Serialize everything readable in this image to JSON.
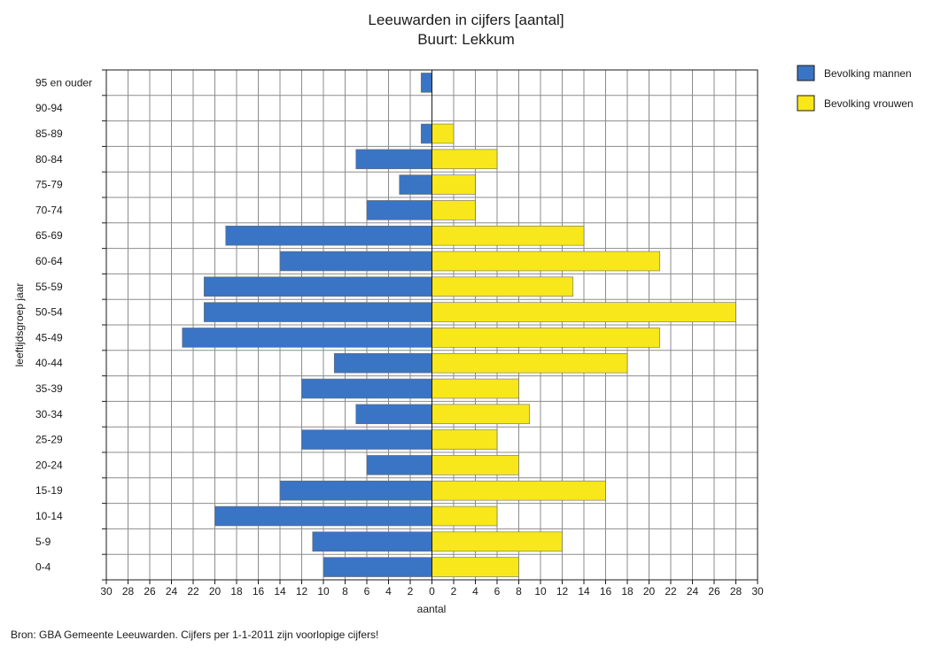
{
  "chart_data": {
    "type": "bar",
    "orientation": "horizontal",
    "layout": "population-pyramid",
    "title": "Leeuwarden in cijfers [aantal]",
    "subtitle": "Buurt: Lekkum",
    "xlabel": "aantal",
    "ylabel": "leeftijdsgroep jaar",
    "xlim": [
      -30,
      30
    ],
    "x_ticks": [
      -30,
      -28,
      -26,
      -24,
      -22,
      -20,
      -18,
      -16,
      -14,
      -12,
      -10,
      -8,
      -6,
      -4,
      -2,
      0,
      2,
      4,
      6,
      8,
      10,
      12,
      14,
      16,
      18,
      20,
      22,
      24,
      26,
      28,
      30
    ],
    "x_tick_labels": [
      "30",
      "28",
      "26",
      "24",
      "22",
      "20",
      "18",
      "16",
      "14",
      "12",
      "10",
      "8",
      "6",
      "4",
      "2",
      "0",
      "2",
      "4",
      "6",
      "8",
      "10",
      "12",
      "14",
      "16",
      "18",
      "20",
      "22",
      "24",
      "26",
      "28",
      "30"
    ],
    "grid": true,
    "legend_position": "top-right",
    "categories": [
      "95 en ouder",
      "90-94",
      "85-89",
      "80-84",
      "75-79",
      "70-74",
      "65-69",
      "60-64",
      "55-59",
      "50-54",
      "45-49",
      "40-44",
      "35-39",
      "30-34",
      "25-29",
      "20-24",
      "15-19",
      "10-14",
      "5-9",
      "0-4"
    ],
    "series": [
      {
        "name": "Bevolking mannen",
        "color": "#3a74c4",
        "side": "left",
        "values": [
          1,
          0,
          1,
          7,
          3,
          6,
          19,
          14,
          21,
          21,
          23,
          9,
          12,
          7,
          12,
          6,
          14,
          20,
          11,
          10
        ]
      },
      {
        "name": "Bevolking vrouwen",
        "color": "#f7e71b",
        "side": "right",
        "values": [
          0,
          0,
          2,
          6,
          4,
          4,
          14,
          21,
          13,
          28,
          21,
          18,
          8,
          9,
          6,
          8,
          16,
          6,
          12,
          8
        ]
      }
    ]
  },
  "source_note": "Bron: GBA Gemeente Leeuwarden. Cijfers per 1-1-2011 zijn voorlopige cijfers!"
}
